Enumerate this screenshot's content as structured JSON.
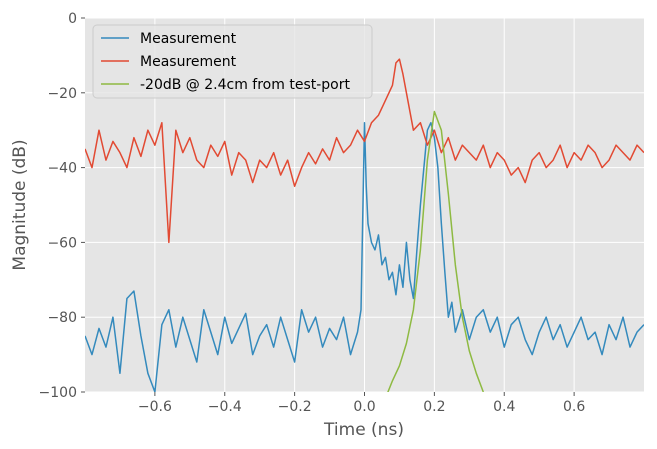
{
  "chart_data": {
    "type": "line",
    "title": "",
    "xlabel": "Time (ns)",
    "ylabel": "Magnitude (dB)",
    "xlim": [
      -0.8,
      0.8
    ],
    "ylim": [
      -100,
      0
    ],
    "x_ticks": [
      -0.6,
      -0.4,
      -0.2,
      0.0,
      0.2,
      0.4,
      0.6
    ],
    "x_tick_labels": [
      "−0.6",
      "−0.4",
      "−0.2",
      "0.0",
      "0.2",
      "0.4",
      "0.6"
    ],
    "y_ticks": [
      0,
      -20,
      -40,
      -60,
      -80,
      -100
    ],
    "y_tick_labels": [
      "0",
      "−20",
      "−40",
      "−60",
      "−80",
      "−100"
    ],
    "grid": true,
    "style": "ggplot",
    "legend_position": "top-left",
    "series": [
      {
        "name": "Measurement",
        "color": "#348ABD",
        "x": [
          -0.8,
          -0.78,
          -0.76,
          -0.74,
          -0.72,
          -0.7,
          -0.68,
          -0.66,
          -0.64,
          -0.62,
          -0.6,
          -0.58,
          -0.56,
          -0.54,
          -0.52,
          -0.5,
          -0.48,
          -0.46,
          -0.44,
          -0.42,
          -0.4,
          -0.38,
          -0.36,
          -0.34,
          -0.32,
          -0.3,
          -0.28,
          -0.26,
          -0.24,
          -0.22,
          -0.2,
          -0.18,
          -0.16,
          -0.14,
          -0.12,
          -0.1,
          -0.08,
          -0.06,
          -0.04,
          -0.02,
          -0.01,
          0.0,
          0.005,
          0.01,
          0.02,
          0.03,
          0.04,
          0.05,
          0.06,
          0.07,
          0.08,
          0.09,
          0.1,
          0.11,
          0.12,
          0.13,
          0.14,
          0.15,
          0.16,
          0.17,
          0.18,
          0.19,
          0.2,
          0.21,
          0.22,
          0.23,
          0.24,
          0.25,
          0.26,
          0.28,
          0.3,
          0.32,
          0.34,
          0.36,
          0.38,
          0.4,
          0.42,
          0.44,
          0.46,
          0.48,
          0.5,
          0.52,
          0.54,
          0.56,
          0.58,
          0.6,
          0.62,
          0.64,
          0.66,
          0.68,
          0.7,
          0.72,
          0.74,
          0.76,
          0.78,
          0.8
        ],
        "y": [
          -85,
          -90,
          -83,
          -88,
          -80,
          -95,
          -75,
          -73,
          -85,
          -95,
          -100,
          -82,
          -78,
          -88,
          -80,
          -86,
          -92,
          -78,
          -84,
          -90,
          -80,
          -87,
          -83,
          -79,
          -90,
          -85,
          -82,
          -88,
          -80,
          -86,
          -92,
          -78,
          -84,
          -80,
          -88,
          -83,
          -86,
          -80,
          -90,
          -84,
          -78,
          -28,
          -45,
          -55,
          -60,
          -62,
          -58,
          -66,
          -64,
          -70,
          -68,
          -74,
          -66,
          -72,
          -60,
          -70,
          -75,
          -62,
          -50,
          -40,
          -30,
          -28,
          -32,
          -40,
          -55,
          -68,
          -80,
          -76,
          -84,
          -78,
          -86,
          -80,
          -78,
          -84,
          -80,
          -88,
          -82,
          -80,
          -86,
          -90,
          -84,
          -80,
          -86,
          -82,
          -88,
          -84,
          -80,
          -86,
          -84,
          -90,
          -82,
          -86,
          -80,
          -88,
          -84,
          -82
        ],
        "note": "noisy time-domain trace; low floor near -85 dB with peak near -28 dB at 0.0 ns and -28 dB at 0.2 ns"
      },
      {
        "name": "Measurement",
        "color": "#E24A33",
        "x": [
          -0.8,
          -0.78,
          -0.76,
          -0.74,
          -0.72,
          -0.7,
          -0.68,
          -0.66,
          -0.64,
          -0.62,
          -0.6,
          -0.58,
          -0.56,
          -0.54,
          -0.52,
          -0.5,
          -0.48,
          -0.46,
          -0.44,
          -0.42,
          -0.4,
          -0.38,
          -0.36,
          -0.34,
          -0.32,
          -0.3,
          -0.28,
          -0.26,
          -0.24,
          -0.22,
          -0.2,
          -0.18,
          -0.16,
          -0.14,
          -0.12,
          -0.1,
          -0.08,
          -0.06,
          -0.04,
          -0.02,
          0.0,
          0.02,
          0.04,
          0.06,
          0.08,
          0.09,
          0.1,
          0.11,
          0.12,
          0.14,
          0.16,
          0.18,
          0.2,
          0.22,
          0.24,
          0.26,
          0.28,
          0.3,
          0.32,
          0.34,
          0.36,
          0.38,
          0.4,
          0.42,
          0.44,
          0.46,
          0.48,
          0.5,
          0.52,
          0.54,
          0.56,
          0.58,
          0.6,
          0.62,
          0.64,
          0.66,
          0.68,
          0.7,
          0.72,
          0.74,
          0.76,
          0.78,
          0.8
        ],
        "y": [
          -35,
          -40,
          -30,
          -38,
          -33,
          -36,
          -40,
          -32,
          -37,
          -30,
          -34,
          -28,
          -60,
          -30,
          -36,
          -32,
          -38,
          -40,
          -34,
          -37,
          -33,
          -42,
          -36,
          -38,
          -44,
          -38,
          -40,
          -36,
          -42,
          -38,
          -45,
          -40,
          -36,
          -39,
          -35,
          -38,
          -32,
          -36,
          -34,
          -30,
          -33,
          -28,
          -26,
          -22,
          -18,
          -12,
          -11,
          -15,
          -20,
          -30,
          -28,
          -34,
          -30,
          -36,
          -32,
          -38,
          -34,
          -36,
          -38,
          -34,
          -40,
          -36,
          -38,
          -42,
          -40,
          -44,
          -38,
          -36,
          -40,
          -38,
          -34,
          -40,
          -36,
          -38,
          -34,
          -36,
          -40,
          -38,
          -34,
          -36,
          -38,
          -34,
          -36
        ],
        "note": "noisy time-domain trace; floor near -35 dB with peak near -11 dB at 0.1 ns"
      },
      {
        "name": "-20dB @ 2.4cm from test-port",
        "color": "#8EBA42",
        "x": [
          0.05,
          0.08,
          0.1,
          0.12,
          0.14,
          0.16,
          0.18,
          0.2,
          0.22,
          0.24,
          0.26,
          0.28,
          0.3,
          0.32,
          0.34
        ],
        "y": [
          -104,
          -97,
          -93,
          -87,
          -78,
          -62,
          -38,
          -25,
          -30,
          -47,
          -66,
          -80,
          -89,
          -95,
          -100
        ],
        "note": "Gaussian pulse centered at 0.2 ns, peak about -25 dB"
      }
    ]
  }
}
